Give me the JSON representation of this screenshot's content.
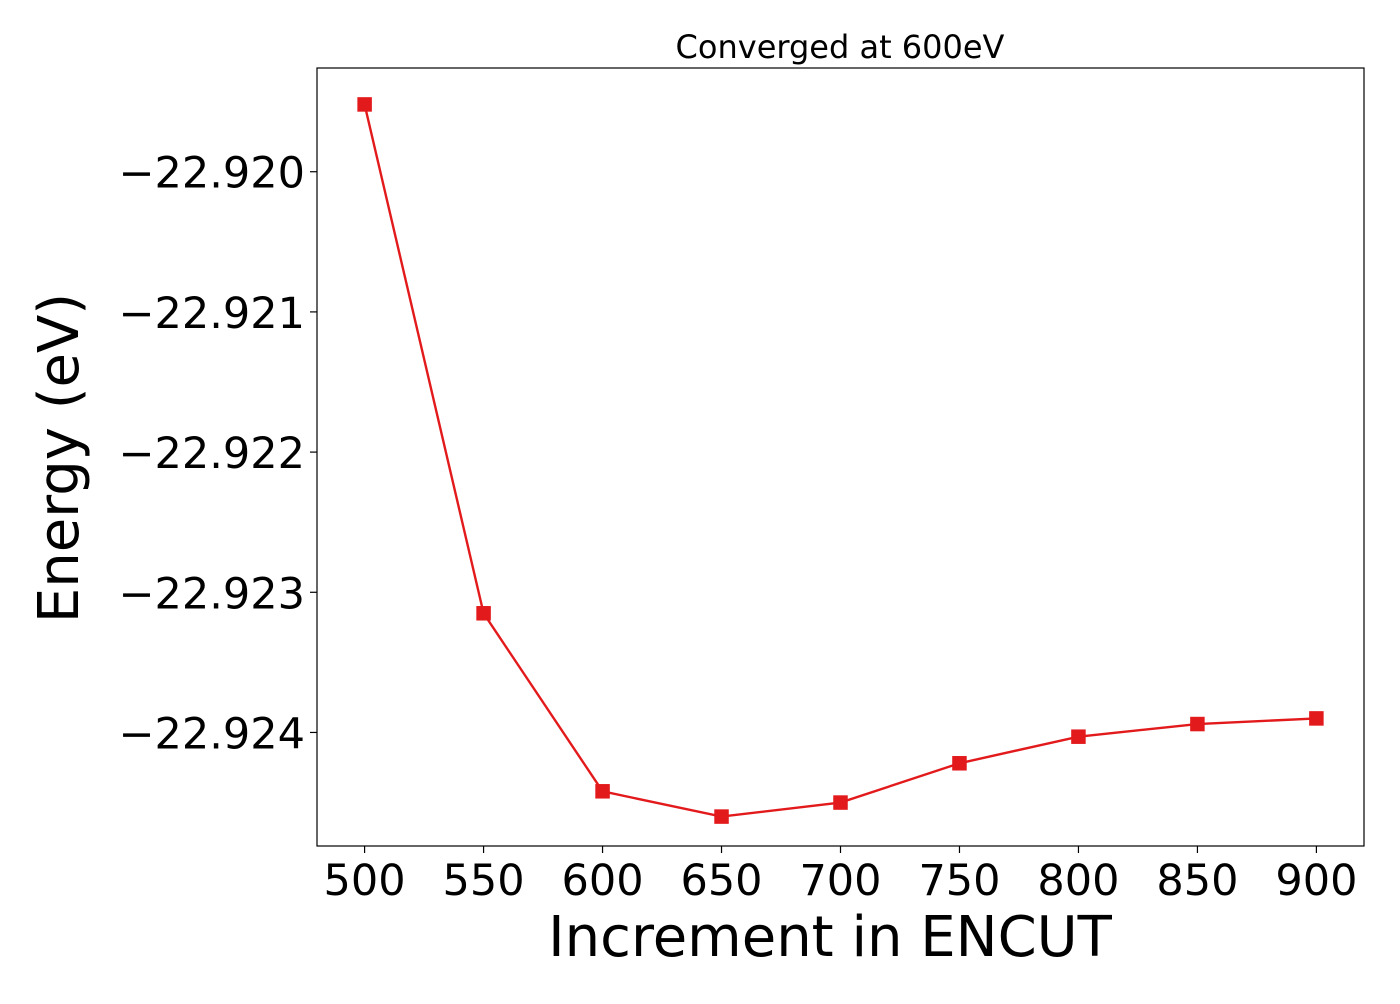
{
  "chart_data": {
    "type": "line",
    "title": "Converged at 600eV",
    "xlabel": "Increment in ENCUT",
    "ylabel": "Energy (eV)",
    "x": [
      500,
      550,
      600,
      650,
      700,
      750,
      800,
      850,
      900
    ],
    "series": [
      {
        "values": [
          -22.91952,
          -22.92315,
          -22.92442,
          -22.9246,
          -22.9245,
          -22.92422,
          -22.92403,
          -22.92394,
          -22.9239
        ],
        "color": "#e31a1c",
        "marker": "square"
      }
    ],
    "xticks": [
      500,
      550,
      600,
      650,
      700,
      750,
      800,
      850,
      900
    ],
    "xtick_labels": [
      "500",
      "550",
      "600",
      "650",
      "700",
      "750",
      "800",
      "850",
      "900"
    ],
    "yticks": [
      -22.92,
      -22.921,
      -22.922,
      -22.923,
      -22.924
    ],
    "ytick_labels": [
      "−22.920",
      "−22.921",
      "−22.922",
      "−22.923",
      "−22.924"
    ],
    "xlim": [
      480,
      920
    ],
    "ylim": [
      -22.92481,
      -22.91926
    ],
    "grid": false,
    "legend": "none"
  }
}
